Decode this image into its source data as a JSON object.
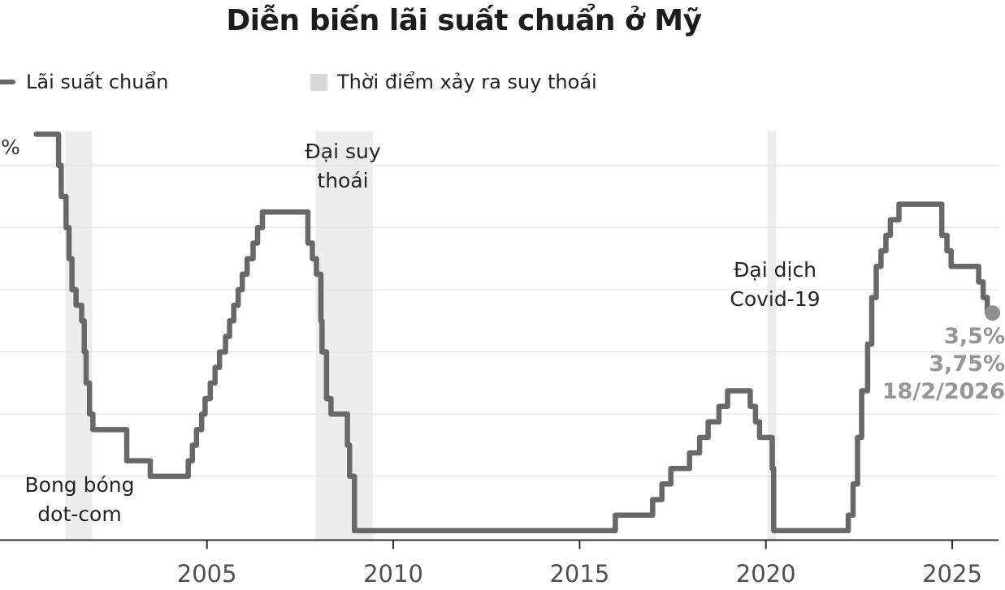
{
  "title": "Diễn biến lãi suất chuẩn ở Mỹ",
  "legend": {
    "line_label": "Lãi suất chuẩn",
    "band_label": "Thời điểm xảy ra suy thoái"
  },
  "y_axis_unit": "%",
  "annotations": {
    "dotcom": {
      "line1": "Bong bóng",
      "line2": "dot-com"
    },
    "great_recession": {
      "line1": "Đại suy",
      "line2": "thoái"
    },
    "covid": {
      "line1": "Đại dịch",
      "line2": "Covid-19"
    }
  },
  "end_label": {
    "line1": "3,5%",
    "line2": "3,75%",
    "line3": "18/2/2026"
  },
  "colors": {
    "line": "#686868",
    "dot": "#8f8f8f",
    "band": "#ededed",
    "grid": "#e6e6e6",
    "axis": "#2e2e2e",
    "tick_label": "#4f4f4f",
    "end_label": "#969696"
  },
  "chart_data": {
    "type": "line",
    "step": true,
    "title": "Diễn biến lãi suất chuẩn ở Mỹ",
    "xlabel": "",
    "ylabel": "%",
    "ylim": [
      0,
      6.5
    ],
    "xlim": [
      2000.4,
      2026.25
    ],
    "x_ticks": [
      2005,
      2010,
      2015,
      2020,
      2025
    ],
    "grid_interval_pct": 1,
    "legend_position": "top",
    "series": [
      {
        "name": "Lãi suất chuẩn",
        "unit": "%",
        "points": [
          [
            2000.42,
            6.5
          ],
          [
            2001.02,
            6.0
          ],
          [
            2001.09,
            5.5
          ],
          [
            2001.22,
            5.0
          ],
          [
            2001.3,
            4.5
          ],
          [
            2001.38,
            4.0
          ],
          [
            2001.49,
            3.75
          ],
          [
            2001.64,
            3.5
          ],
          [
            2001.71,
            3.0
          ],
          [
            2001.76,
            2.5
          ],
          [
            2001.85,
            2.0
          ],
          [
            2001.94,
            1.75
          ],
          [
            2002.85,
            1.25
          ],
          [
            2003.48,
            1.0
          ],
          [
            2004.5,
            1.25
          ],
          [
            2004.61,
            1.5
          ],
          [
            2004.72,
            1.75
          ],
          [
            2004.86,
            2.0
          ],
          [
            2004.95,
            2.25
          ],
          [
            2005.09,
            2.5
          ],
          [
            2005.22,
            2.75
          ],
          [
            2005.34,
            3.0
          ],
          [
            2005.5,
            3.25
          ],
          [
            2005.61,
            3.5
          ],
          [
            2005.72,
            3.75
          ],
          [
            2005.84,
            4.0
          ],
          [
            2005.95,
            4.25
          ],
          [
            2006.08,
            4.5
          ],
          [
            2006.24,
            4.75
          ],
          [
            2006.36,
            5.0
          ],
          [
            2006.49,
            5.25
          ],
          [
            2007.71,
            4.75
          ],
          [
            2007.83,
            4.5
          ],
          [
            2007.94,
            4.25
          ],
          [
            2008.06,
            3.5
          ],
          [
            2008.09,
            3.0
          ],
          [
            2008.21,
            2.25
          ],
          [
            2008.33,
            2.0
          ],
          [
            2008.77,
            1.5
          ],
          [
            2008.83,
            1.0
          ],
          [
            2008.96,
            0.125
          ],
          [
            2015.96,
            0.375
          ],
          [
            2016.96,
            0.625
          ],
          [
            2017.21,
            0.875
          ],
          [
            2017.45,
            1.125
          ],
          [
            2017.95,
            1.375
          ],
          [
            2018.22,
            1.625
          ],
          [
            2018.45,
            1.875
          ],
          [
            2018.74,
            2.125
          ],
          [
            2018.97,
            2.375
          ],
          [
            2019.58,
            2.125
          ],
          [
            2019.72,
            1.875
          ],
          [
            2019.83,
            1.625
          ],
          [
            2020.17,
            1.125
          ],
          [
            2020.21,
            0.125
          ],
          [
            2022.21,
            0.375
          ],
          [
            2022.34,
            0.875
          ],
          [
            2022.46,
            1.625
          ],
          [
            2022.57,
            2.375
          ],
          [
            2022.73,
            3.125
          ],
          [
            2022.84,
            3.875
          ],
          [
            2022.96,
            4.375
          ],
          [
            2023.09,
            4.625
          ],
          [
            2023.22,
            4.875
          ],
          [
            2023.34,
            5.125
          ],
          [
            2023.57,
            5.375
          ],
          [
            2024.72,
            4.875
          ],
          [
            2024.86,
            4.625
          ],
          [
            2024.97,
            4.375
          ],
          [
            2025.71,
            4.125
          ],
          [
            2025.83,
            3.875
          ],
          [
            2025.94,
            3.625
          ],
          [
            2026.08,
            3.625
          ]
        ],
        "end_dot": [
          2026.08,
          3.625
        ],
        "end_value_range": "3,5% - 3,75%",
        "end_date": "18/2/2026"
      }
    ],
    "recession_bands": [
      {
        "label": "Bong bóng dot-com",
        "from": 2001.2,
        "to": 2001.92
      },
      {
        "label": "Đại suy thoái",
        "from": 2007.92,
        "to": 2009.45
      },
      {
        "label": "Đại dịch Covid-19",
        "from": 2020.04,
        "to": 2020.28
      }
    ]
  }
}
